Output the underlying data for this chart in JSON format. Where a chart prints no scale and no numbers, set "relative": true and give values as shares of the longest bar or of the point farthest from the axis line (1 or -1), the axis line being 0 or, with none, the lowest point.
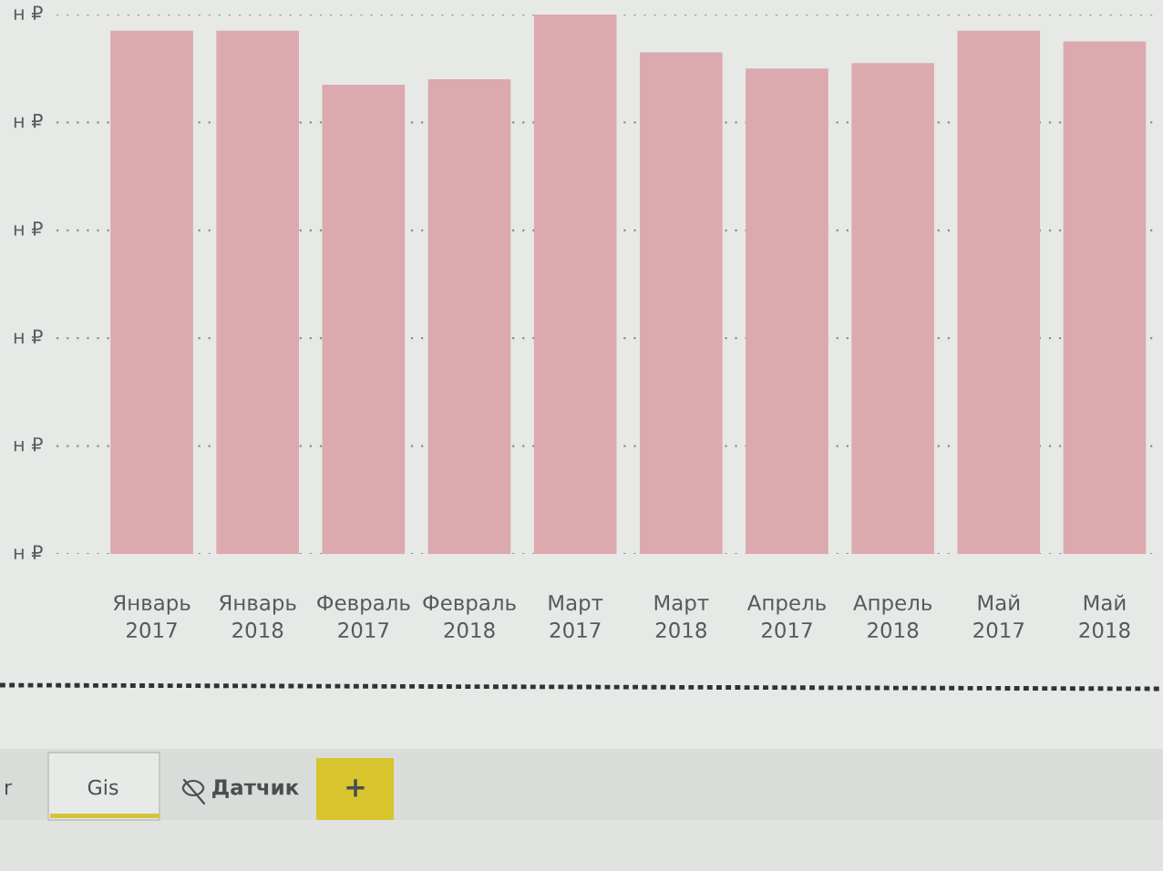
{
  "chart_data": {
    "type": "bar",
    "categories": [
      "Январь 2017",
      "Январь 2018",
      "Февраль 2017",
      "Февраль 2018",
      "Март 2017",
      "Март 2018",
      "Апрель 2017",
      "Апрель 2018",
      "Май 2017",
      "Май 2018"
    ],
    "values": [
      0.97,
      0.97,
      0.87,
      0.88,
      1,
      0.93,
      0.9,
      0.91,
      0.97,
      0.95
    ],
    "color": "#dba9ae",
    "relative": true,
    "grid": "y",
    "annotations": [
      "н ₽",
      "н ₽",
      "н ₽",
      "н ₽",
      "н ₽",
      "н ₽",
      "r",
      "Gis",
      "Датчик",
      "+"
    ]
  }
}
